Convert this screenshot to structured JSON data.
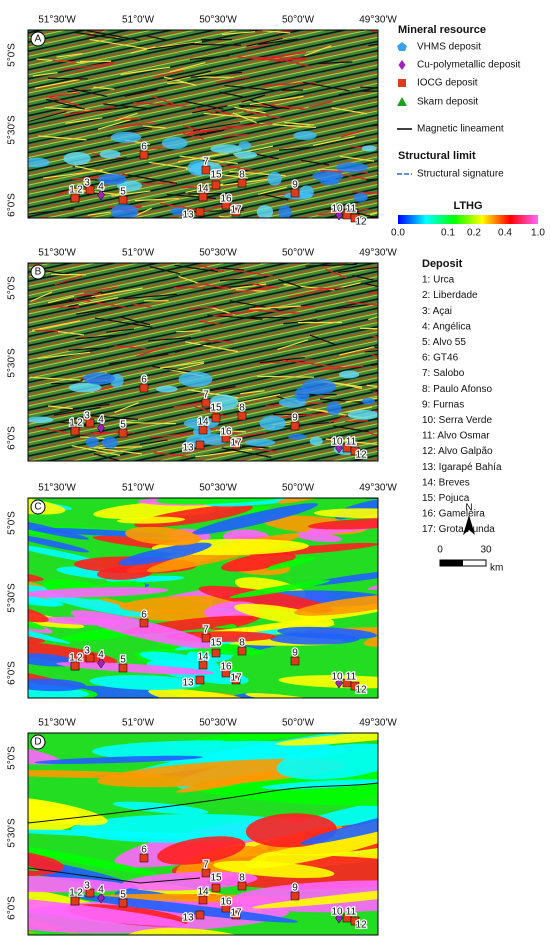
{
  "panels": [
    {
      "label": "A"
    },
    {
      "label": "B"
    },
    {
      "label": "C"
    },
    {
      "label": "D"
    }
  ],
  "lon_ticks": [
    "51°30'W",
    "51°0'W",
    "50°30'W",
    "50°0'W",
    "49°30'W"
  ],
  "lat_ticks": [
    "5°0'S",
    "5°30'S",
    "6°0'S"
  ],
  "map_labels": [
    "1",
    "2",
    "3",
    "4",
    "5",
    "6",
    "7",
    "8",
    "9",
    "10",
    "11",
    "12",
    "13",
    "14",
    "15",
    "16",
    "17"
  ],
  "legend": {
    "title": "Mineral resource",
    "items": [
      "VHMS deposit",
      "Cu-polymetallic deposit",
      "IOCG deposit",
      "Skarn deposit"
    ],
    "lineament": "Magnetic lineament",
    "structural_title": "Structural limit",
    "structural_item": "Structural signature"
  },
  "colorbar": {
    "title": "LTHG",
    "ticks": [
      "0.0",
      "0.1",
      "0.2",
      "0.4",
      "1.0"
    ]
  },
  "deposit_list": {
    "title": "Deposit",
    "items": [
      "1: Urca",
      "2: Liberdade",
      "3: Açai",
      "4: Angélica",
      "5: Alvo 55",
      "6: GT46",
      "7: Salobo",
      "8: Paulo Afonso",
      "9: Furnas",
      "10: Serra Verde",
      "11: Alvo Osmar",
      "12: Alvo Galpão",
      "13: Igarapé Bahía",
      "14: Breves",
      "15: Pojuca",
      "16: Gameleira",
      "17: Grota Funda"
    ]
  },
  "north": "N",
  "scale": {
    "ticks": [
      "0",
      "30"
    ],
    "unit": "km"
  }
}
